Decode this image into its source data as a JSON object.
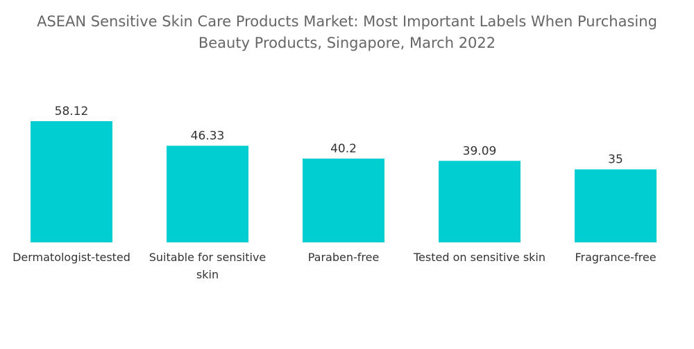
{
  "chart_data": {
    "type": "bar",
    "title": "ASEAN Sensitive Skin Care Products Market: Most Important Labels When Purchasing Beauty Products, Singapore, March 2022",
    "categories": [
      "Dermatologist-tested",
      "Suitable for sensitive skin",
      "Paraben-free",
      "Tested on sensitive skin",
      "Fragrance-free"
    ],
    "values": [
      58.12,
      46.33,
      40.2,
      39.09,
      35
    ],
    "value_labels": [
      "58.12",
      "46.33",
      "40.2",
      "39.09",
      "35"
    ],
    "xlabel": "",
    "ylabel": "",
    "ylim": [
      0,
      58.12
    ],
    "grid": false,
    "bar_color": "#00CED1"
  }
}
